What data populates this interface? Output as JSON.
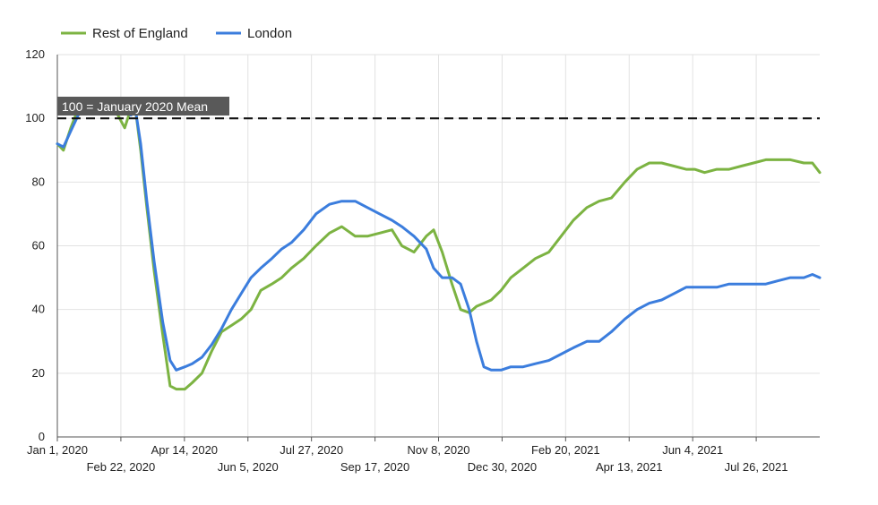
{
  "chart_data": {
    "type": "line",
    "legend_position": "top-left",
    "grid": true,
    "ylim": [
      0,
      120
    ],
    "y_ticks": [
      "0",
      "20",
      "40",
      "60",
      "80",
      "100",
      "120"
    ],
    "x_tick_labels_row1": [
      "Jan 1, 2020",
      "Apr 14, 2020",
      "Jul 27, 2020",
      "Nov 8, 2020",
      "Feb 20, 2021",
      "Jun 4, 2021"
    ],
    "x_tick_labels_row2": [
      "Feb 22, 2020",
      "Jun 5, 2020",
      "Sep 17, 2020",
      "Dec 30, 2020",
      "Apr 13, 2021",
      "Jul 26, 2021"
    ],
    "reference_line": {
      "y": 100,
      "label": "100 = January 2020 Mean"
    },
    "series": [
      {
        "name": "Rest of England",
        "color": "#7cb342",
        "x": [
          "2020-01-01",
          "2020-01-06",
          "2020-01-12",
          "2020-01-18",
          "2020-01-25",
          "2020-02-01",
          "2020-02-10",
          "2020-02-18",
          "2020-02-25",
          "2020-03-01",
          "2020-03-05",
          "2020-03-09",
          "2020-03-14",
          "2020-03-20",
          "2020-03-27",
          "2020-04-02",
          "2020-04-07",
          "2020-04-14",
          "2020-04-20",
          "2020-04-28",
          "2020-05-06",
          "2020-05-14",
          "2020-05-22",
          "2020-05-30",
          "2020-06-07",
          "2020-06-15",
          "2020-06-24",
          "2020-07-02",
          "2020-07-10",
          "2020-07-20",
          "2020-07-30",
          "2020-08-10",
          "2020-08-20",
          "2020-08-31",
          "2020-09-10",
          "2020-09-20",
          "2020-09-30",
          "2020-10-08",
          "2020-10-18",
          "2020-10-28",
          "2020-11-03",
          "2020-11-10",
          "2020-11-18",
          "2020-11-25",
          "2020-12-02",
          "2020-12-08",
          "2020-12-14",
          "2020-12-20",
          "2020-12-28",
          "2021-01-05",
          "2021-01-15",
          "2021-01-25",
          "2021-02-05",
          "2021-02-15",
          "2021-02-25",
          "2021-03-08",
          "2021-03-18",
          "2021-03-28",
          "2021-04-08",
          "2021-04-18",
          "2021-04-28",
          "2021-05-08",
          "2021-05-18",
          "2021-05-28",
          "2021-06-04",
          "2021-06-12",
          "2021-06-22",
          "2021-07-02",
          "2021-07-12",
          "2021-07-22",
          "2021-08-01",
          "2021-08-11",
          "2021-08-21",
          "2021-09-01",
          "2021-09-08",
          "2021-09-14"
        ],
        "values": [
          92,
          90,
          97,
          103,
          106,
          104,
          105,
          102,
          97,
          103,
          102,
          90,
          72,
          52,
          32,
          16,
          15,
          15,
          17,
          20,
          27,
          33,
          35,
          37,
          40,
          46,
          48,
          50,
          53,
          56,
          60,
          64,
          66,
          63,
          63,
          64,
          65,
          60,
          58,
          63,
          65,
          58,
          48,
          40,
          39,
          41,
          42,
          43,
          46,
          50,
          53,
          56,
          58,
          63,
          68,
          72,
          74,
          75,
          80,
          84,
          86,
          86,
          85,
          84,
          84,
          83,
          84,
          84,
          85,
          86,
          87,
          87,
          87,
          86,
          86,
          83
        ]
      },
      {
        "name": "London",
        "color": "#3b7ddd",
        "x": [
          "2020-01-01",
          "2020-01-06",
          "2020-01-12",
          "2020-01-18",
          "2020-01-25",
          "2020-02-01",
          "2020-02-10",
          "2020-02-18",
          "2020-02-25",
          "2020-03-01",
          "2020-03-05",
          "2020-03-09",
          "2020-03-14",
          "2020-03-20",
          "2020-03-27",
          "2020-04-02",
          "2020-04-07",
          "2020-04-14",
          "2020-04-20",
          "2020-04-28",
          "2020-05-06",
          "2020-05-14",
          "2020-05-22",
          "2020-05-30",
          "2020-06-07",
          "2020-06-15",
          "2020-06-24",
          "2020-07-02",
          "2020-07-10",
          "2020-07-20",
          "2020-07-30",
          "2020-08-10",
          "2020-08-20",
          "2020-08-31",
          "2020-09-10",
          "2020-09-20",
          "2020-09-30",
          "2020-10-08",
          "2020-10-18",
          "2020-10-28",
          "2020-11-03",
          "2020-11-10",
          "2020-11-18",
          "2020-11-25",
          "2020-12-02",
          "2020-12-08",
          "2020-12-14",
          "2020-12-20",
          "2020-12-28",
          "2021-01-05",
          "2021-01-15",
          "2021-01-25",
          "2021-02-05",
          "2021-02-15",
          "2021-02-25",
          "2021-03-08",
          "2021-03-18",
          "2021-03-28",
          "2021-04-08",
          "2021-04-18",
          "2021-04-28",
          "2021-05-08",
          "2021-05-18",
          "2021-05-28",
          "2021-06-04",
          "2021-06-12",
          "2021-06-22",
          "2021-07-02",
          "2021-07-12",
          "2021-07-22",
          "2021-08-01",
          "2021-08-11",
          "2021-08-21",
          "2021-09-01",
          "2021-09-08",
          "2021-09-14"
        ],
        "values": [
          92,
          91,
          96,
          101,
          104,
          103,
          103,
          103,
          102,
          101,
          102,
          92,
          74,
          55,
          36,
          24,
          21,
          22,
          23,
          25,
          29,
          34,
          40,
          45,
          50,
          53,
          56,
          59,
          61,
          65,
          70,
          73,
          74,
          74,
          72,
          70,
          68,
          66,
          63,
          59,
          53,
          50,
          50,
          48,
          40,
          30,
          22,
          21,
          21,
          22,
          22,
          23,
          24,
          26,
          28,
          30,
          30,
          33,
          37,
          40,
          42,
          43,
          45,
          47,
          47,
          47,
          47,
          48,
          48,
          48,
          48,
          49,
          50,
          50,
          51,
          50
        ]
      }
    ]
  }
}
